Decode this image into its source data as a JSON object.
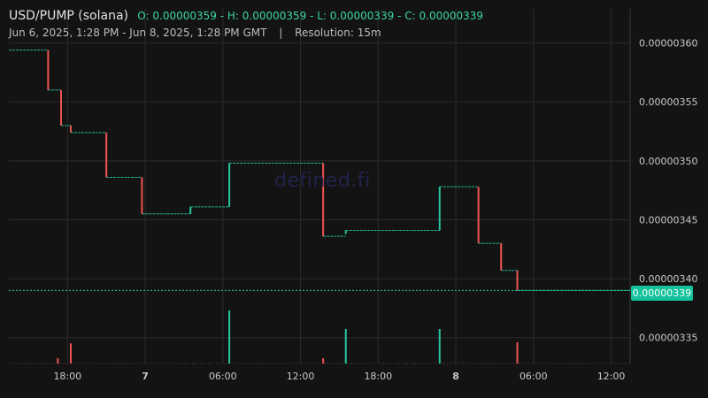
{
  "header": {
    "pair": "USD/PUMP (solana)",
    "ohlc": "O: 0.00000359 - H: 0.00000359 - L: 0.00000339 - C: 0.00000339",
    "range": "Jun 6, 2025, 1:28 PM - Jun 8, 2025, 1:28 PM GMT",
    "separator": "|",
    "resolution": "Resolution: 15m"
  },
  "watermark": "defined.fi",
  "last_price": "0.00000339",
  "colors": {
    "background": "#131313",
    "up": "#26c6a0",
    "down": "#ef5350",
    "grid": "#2b2b2b",
    "axis_text": "#c8c8c8",
    "price_badge": "#13c29a"
  },
  "chart_data": {
    "type": "candlestick",
    "title": "USD/PUMP (solana)",
    "resolution": "15m",
    "x_range": [
      "Jun 6, 2025, 1:28 PM",
      "Jun 8, 2025, 1:28 PM"
    ],
    "x_ticks": [
      "18:00",
      "7",
      "06:00",
      "12:00",
      "18:00",
      "8",
      "06:00",
      "12:00"
    ],
    "y_ticks": [
      "0.00000360",
      "0.00000355",
      "0.00000350",
      "0.00000345",
      "0.00000340",
      "0.00000335"
    ],
    "ylim": [
      3.328e-06,
      3.629e-06
    ],
    "grid": true,
    "current_price": 3.39e-06,
    "steps": [
      {
        "time": "Jun 6 13:28",
        "open": 3.594e-06,
        "close": 3.594e-06
      },
      {
        "time": "Jun 6 16:30",
        "open": 3.594e-06,
        "close": 3.56e-06
      },
      {
        "time": "Jun 6 17:30",
        "open": 3.56e-06,
        "close": 3.53e-06
      },
      {
        "time": "Jun 6 18:15",
        "open": 3.53e-06,
        "close": 3.524e-06
      },
      {
        "time": "Jun 6 21:00",
        "open": 3.524e-06,
        "close": 3.486e-06
      },
      {
        "time": "Jun 6 23:45",
        "open": 3.486e-06,
        "close": 3.455e-06
      },
      {
        "time": "Jun 7 03:30",
        "open": 3.455e-06,
        "close": 3.461e-06
      },
      {
        "time": "Jun 7 06:30",
        "open": 3.461e-06,
        "close": 3.498e-06
      },
      {
        "time": "Jun 7 13:45",
        "open": 3.498e-06,
        "close": 3.436e-06
      },
      {
        "time": "Jun 7 15:30",
        "open": 3.438e-06,
        "close": 3.441e-06
      },
      {
        "time": "Jun 7 22:45",
        "open": 3.441e-06,
        "close": 3.478e-06
      },
      {
        "time": "Jun 8 01:45",
        "open": 3.478e-06,
        "close": 3.43e-06
      },
      {
        "time": "Jun 8 03:30",
        "open": 3.43e-06,
        "close": 3.407e-06
      },
      {
        "time": "Jun 8 04:45",
        "open": 3.407e-06,
        "close": 3.39e-06
      },
      {
        "time": "Jun 8 13:28",
        "open": 3.39e-06,
        "close": 3.39e-06
      }
    ],
    "volume": [
      {
        "time": "Jun 6 17:15",
        "value": 0.1,
        "dir": "down"
      },
      {
        "time": "Jun 6 18:15",
        "value": 0.38,
        "dir": "down"
      },
      {
        "time": "Jun 7 06:30",
        "value": 1.0,
        "dir": "up"
      },
      {
        "time": "Jun 7 13:45",
        "value": 0.1,
        "dir": "down"
      },
      {
        "time": "Jun 7 15:30",
        "value": 0.65,
        "dir": "up"
      },
      {
        "time": "Jun 7 22:45",
        "value": 0.65,
        "dir": "up"
      },
      {
        "time": "Jun 8 04:45",
        "value": 0.4,
        "dir": "down"
      }
    ]
  }
}
